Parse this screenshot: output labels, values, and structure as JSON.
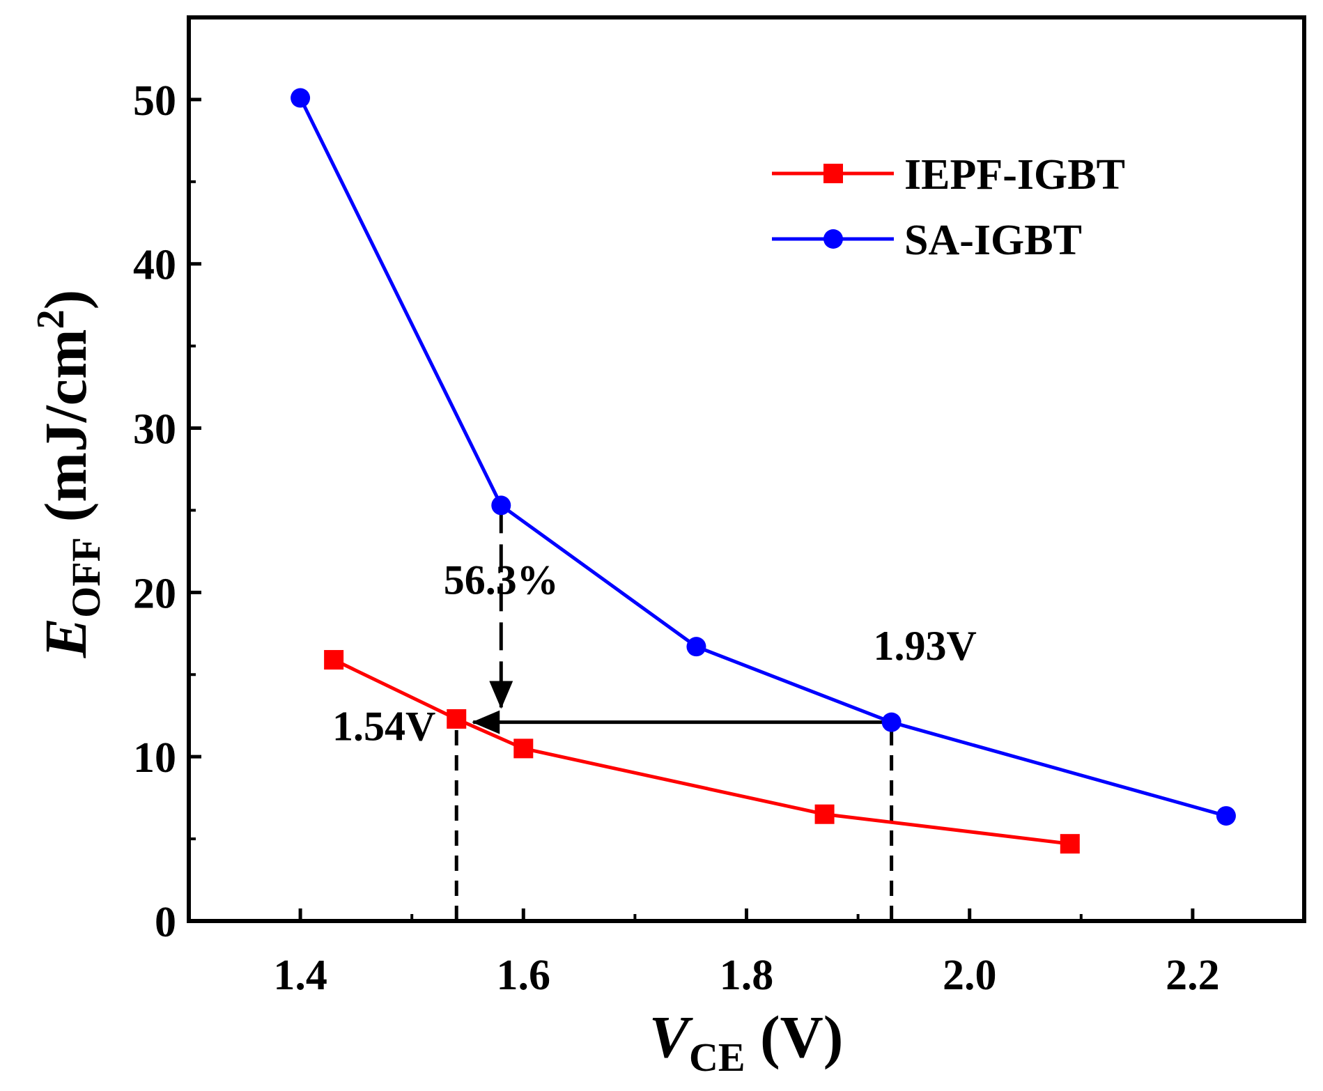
{
  "chart_data": {
    "type": "line",
    "title": "",
    "xlabel": {
      "main": "V",
      "sub": "CE",
      "unit": " (V)"
    },
    "ylabel": {
      "main": "E",
      "sub": "OFF",
      "unit_pre": " (mJ/cm",
      "unit_sup": "2",
      "unit_post": ")"
    },
    "xlim": [
      1.3,
      2.3
    ],
    "ylim": [
      0,
      55
    ],
    "x_ticks": [
      1.4,
      1.6,
      1.8,
      2.0,
      2.2
    ],
    "x_tick_labels": [
      "1.4",
      "1.6",
      "1.8",
      "2.0",
      "2.2"
    ],
    "x_minor_ticks": [
      1.5,
      1.7,
      1.9,
      2.1
    ],
    "y_ticks": [
      0,
      10,
      20,
      30,
      40,
      50
    ],
    "y_tick_labels": [
      "0",
      "10",
      "20",
      "30",
      "40",
      "50"
    ],
    "y_minor_ticks": [
      5,
      15,
      25,
      35,
      45
    ],
    "grid": false,
    "legend_position": "top-right",
    "series": [
      {
        "name": "IEPF-IGBT",
        "color": "#ff0000",
        "marker": "square",
        "x": [
          1.43,
          1.54,
          1.6,
          1.87,
          2.09
        ],
        "y": [
          15.9,
          12.3,
          10.5,
          6.5,
          4.7
        ]
      },
      {
        "name": "SA-IGBT",
        "color": "#0000ff",
        "marker": "circle",
        "x": [
          1.4,
          1.58,
          1.755,
          1.93,
          2.23
        ],
        "y": [
          50.1,
          25.3,
          16.7,
          12.1,
          6.4
        ]
      }
    ],
    "annotations": [
      {
        "text": "56.3%",
        "x": 1.58,
        "y": 19.9
      },
      {
        "text": "1.93V",
        "x": 1.96,
        "y": 15.9
      },
      {
        "text": "1.54V",
        "x": 1.475,
        "y": 11.0
      }
    ],
    "dashed_lines": [
      {
        "x": 1.54,
        "y_from": 0,
        "y_to": 12.3
      },
      {
        "x": 1.93,
        "y_from": 0,
        "y_to": 12.1
      }
    ],
    "arrows": [
      {
        "from": [
          1.58,
          25.3
        ],
        "to": [
          1.58,
          13.0
        ],
        "note": "vertical arrow with dashed shaft"
      },
      {
        "from": [
          1.93,
          12.1
        ],
        "to": [
          1.555,
          12.1
        ],
        "note": "horizontal arrow"
      }
    ]
  }
}
